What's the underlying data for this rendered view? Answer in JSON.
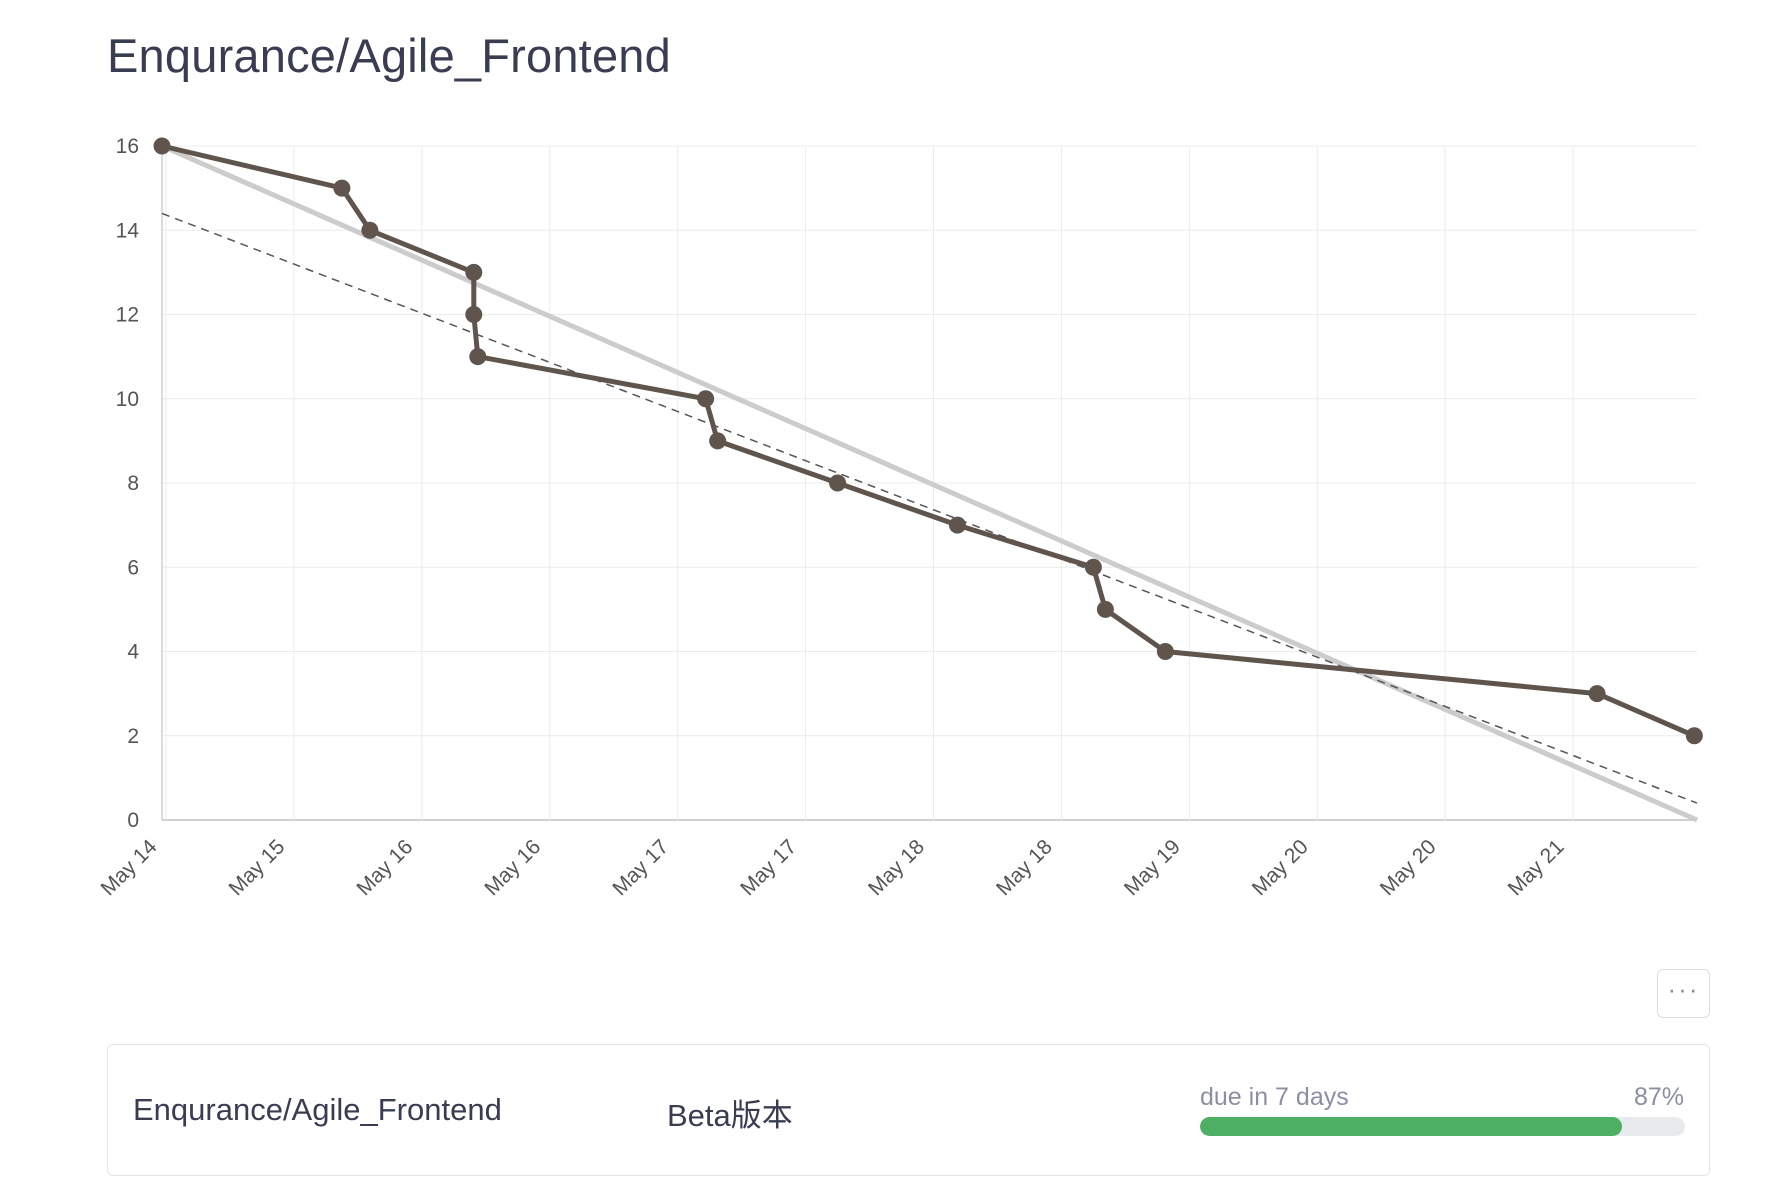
{
  "page": {
    "title": "Enqurance/Agile_Frontend"
  },
  "colors": {
    "actual_line": "#5f554d",
    "ideal_line": "#cccccc",
    "trend_line": "#555555",
    "grid": "#ececec",
    "progress_fill": "#4caf63"
  },
  "chart_data": {
    "type": "line",
    "title": "",
    "xlabel": "",
    "ylabel": "",
    "ylim": [
      0,
      16
    ],
    "yticks": [
      0,
      2,
      4,
      6,
      8,
      10,
      12,
      14,
      16
    ],
    "xlim": [
      "2024-05-14 00:00",
      "2024-05-22 00:00"
    ],
    "xtick_labels": [
      "May 14",
      "May 15",
      "May 16",
      "May 16",
      "May 17",
      "May 17",
      "May 18",
      "May 18",
      "May 19",
      "May 20",
      "May 20",
      "May 21"
    ],
    "grid": true,
    "legend": "none",
    "series": [
      {
        "role": "actual",
        "style": "solid-markers",
        "points": [
          [
            "2024-05-14 00:00",
            16
          ],
          [
            "2024-05-14 22:30",
            15
          ],
          [
            "2024-05-15 02:00",
            14
          ],
          [
            "2024-05-15 15:00",
            13
          ],
          [
            "2024-05-15 15:00",
            12
          ],
          [
            "2024-05-15 15:30",
            11
          ],
          [
            "2024-05-16 20:00",
            10
          ],
          [
            "2024-05-16 21:30",
            9
          ],
          [
            "2024-05-17 12:30",
            8
          ],
          [
            "2024-05-18 03:30",
            7
          ],
          [
            "2024-05-18 20:30",
            6
          ],
          [
            "2024-05-18 22:00",
            5
          ],
          [
            "2024-05-19 05:30",
            4
          ],
          [
            "2024-05-21 11:30",
            3
          ],
          [
            "2024-05-21 23:40",
            2
          ]
        ]
      },
      {
        "role": "ideal",
        "style": "thick-gray",
        "points": [
          [
            "2024-05-14 00:00",
            16
          ],
          [
            "2024-05-22 00:00",
            0
          ]
        ]
      },
      {
        "role": "trend",
        "style": "dashed",
        "points": [
          [
            "2024-05-14 00:00",
            14.4
          ],
          [
            "2024-05-22 00:00",
            0.4
          ]
        ]
      }
    ]
  },
  "more_button": {
    "label": "···"
  },
  "milestone": {
    "repo": "Enqurance/Agile_Frontend",
    "name": "Beta版本",
    "due_text": "due in 7 days",
    "percent_text": "87%",
    "progress": 0.87
  }
}
